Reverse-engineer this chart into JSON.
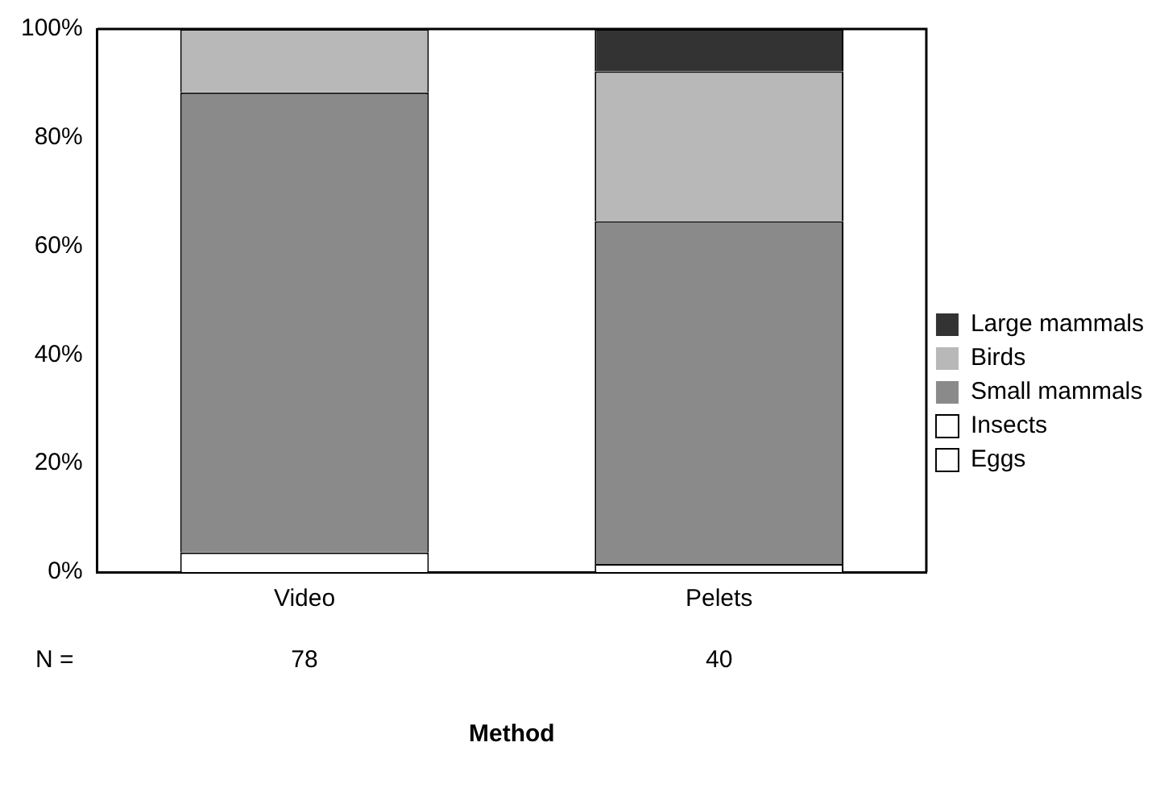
{
  "chart_data": {
    "type": "bar",
    "stacked": true,
    "xlabel": "Method",
    "categories": [
      "Video",
      "Pelets"
    ],
    "series": [
      {
        "name": "Eggs",
        "color": "#ffffff",
        "values": [
          0,
          0
        ]
      },
      {
        "name": "Insects",
        "color": "#ffffff",
        "values": [
          3.6,
          1.5
        ]
      },
      {
        "name": "Small mammals",
        "color": "#8a8a8a",
        "values": [
          84.7,
          63.1
        ]
      },
      {
        "name": "Birds",
        "color": "#b8b8b8",
        "values": [
          11.7,
          27.6
        ]
      },
      {
        "name": "Large mammals",
        "color": "#333333",
        "values": [
          0,
          7.8
        ]
      }
    ],
    "ylim": [
      0,
      100
    ],
    "yticks": [
      {
        "value": 0,
        "label": "0%"
      },
      {
        "value": 20,
        "label": "20%"
      },
      {
        "value": 40,
        "label": "40%"
      },
      {
        "value": 60,
        "label": "60%"
      },
      {
        "value": 80,
        "label": "80%"
      },
      {
        "value": 100,
        "label": "100%"
      }
    ],
    "grid": false,
    "legend": "right",
    "annotations": [
      "N =",
      "78",
      "40"
    ]
  }
}
